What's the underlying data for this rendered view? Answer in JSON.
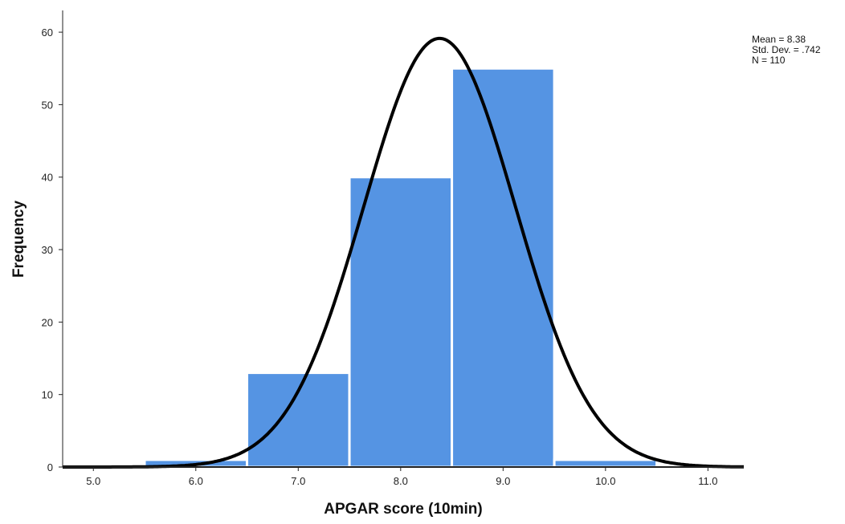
{
  "chart_data": {
    "type": "bar",
    "subtype": "histogram",
    "xlabel": "APGAR score (10min)",
    "ylabel": "Frequency",
    "xlim": [
      4.7,
      11.35
    ],
    "ylim": [
      0,
      63
    ],
    "x_ticks": [
      5.0,
      6.0,
      7.0,
      8.0,
      9.0,
      10.0,
      11.0
    ],
    "x_tick_labels": [
      "5.0",
      "6.0",
      "7.0",
      "8.0",
      "9.0",
      "10.0",
      "11.0"
    ],
    "y_ticks": [
      0,
      10,
      20,
      30,
      40,
      50,
      60
    ],
    "y_tick_labels": [
      "0",
      "10",
      "20",
      "30",
      "40",
      "50",
      "60"
    ],
    "bin_width": 1,
    "bins": [
      {
        "start": 5.5,
        "end": 6.5,
        "value": 1
      },
      {
        "start": 6.5,
        "end": 7.5,
        "value": 13
      },
      {
        "start": 7.5,
        "end": 8.5,
        "value": 40
      },
      {
        "start": 8.5,
        "end": 9.5,
        "value": 55
      },
      {
        "start": 9.5,
        "end": 10.5,
        "value": 1
      }
    ],
    "normal_curve": {
      "mean": 8.38,
      "sd": 0.742,
      "n": 110
    },
    "stats_text": [
      "Mean = 8.38",
      "Std. Dev. = .742",
      "N = 110"
    ],
    "legend_position": "top-right",
    "grid": false,
    "colors": {
      "bar_fill": "#5594E3",
      "bar_edge": "#ffffff",
      "curve": "#000000",
      "axis": "#222222"
    }
  }
}
